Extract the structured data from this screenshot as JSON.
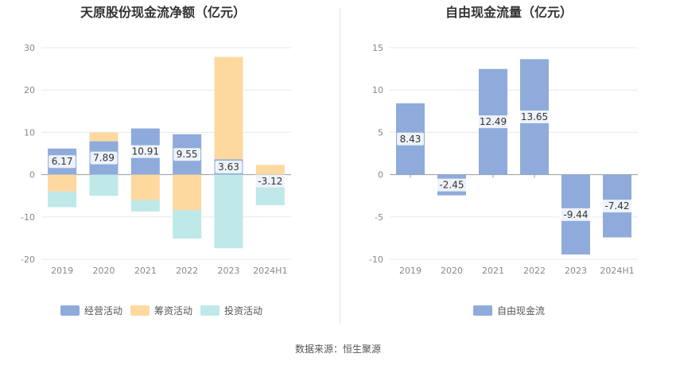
{
  "source": "数据来源：恒生聚源",
  "colors": {
    "blue": "#8eabdb",
    "orange": "#fdd9a0",
    "teal": "#87d6d6",
    "grid": "#e8e8e8",
    "axis_text": "#888888"
  },
  "chart_data": [
    {
      "type": "bar",
      "stacked": true,
      "title": "天原股份现金流净额（亿元）",
      "categories": [
        "2019",
        "2020",
        "2021",
        "2022",
        "2023",
        "2024H1"
      ],
      "ylim": [
        -20,
        30
      ],
      "yticks": [
        -20,
        -10,
        0,
        10,
        20,
        30
      ],
      "grid": true,
      "legend_position": "bottom",
      "series": [
        {
          "name": "经营活动",
          "color": "#8eabdb",
          "values": [
            6.17,
            7.89,
            10.91,
            9.55,
            3.63,
            -3.12
          ]
        },
        {
          "name": "筹资活动",
          "color": "#fdd9a0",
          "values": [
            -4.0,
            2.1,
            -6.0,
            -8.4,
            24.2,
            2.3
          ]
        },
        {
          "name": "投资活动",
          "color": "#bfe8e8",
          "values": [
            -3.7,
            -5.0,
            -2.7,
            -6.7,
            -17.4,
            -4.1
          ]
        }
      ],
      "data_labels": [
        "6.17",
        "7.89",
        "10.91",
        "9.55",
        "3.63",
        "-3.12"
      ]
    },
    {
      "type": "bar",
      "title": "自由现金流量（亿元）",
      "categories": [
        "2019",
        "2020",
        "2021",
        "2022",
        "2023",
        "2024H1"
      ],
      "ylim": [
        -10,
        15
      ],
      "yticks": [
        -10,
        -5,
        0,
        5,
        10,
        15
      ],
      "grid": true,
      "legend_position": "bottom",
      "series": [
        {
          "name": "自由现金流",
          "color": "#8eabdb",
          "values": [
            8.43,
            -2.45,
            12.49,
            13.65,
            -9.44,
            -7.42
          ]
        }
      ],
      "data_labels": [
        "8.43",
        "-2.45",
        "12.49",
        "13.65",
        "-9.44",
        "-7.42"
      ]
    }
  ]
}
